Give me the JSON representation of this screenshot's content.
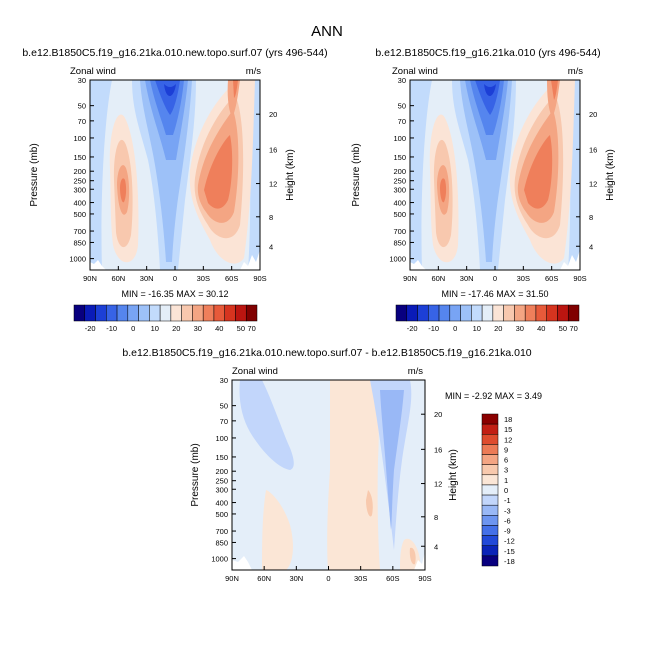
{
  "figure": {
    "title": "ANN"
  },
  "colors": {
    "mean_scale": [
      "#08007f",
      "#0a1bb8",
      "#1c3fd6",
      "#3763e6",
      "#5585ee",
      "#78a4f4",
      "#9dc1f8",
      "#c2dbfc",
      "#e4eef8",
      "#fbe4d6",
      "#f8c8ae",
      "#f4a583",
      "#ef7f5b",
      "#e75a3a",
      "#d6341f",
      "#bb1510",
      "#800000"
    ],
    "diff_scale": [
      "#08007f",
      "#0a24b8",
      "#2149d8",
      "#4470e8",
      "#6d95f0",
      "#99b8f6",
      "#c2d6fb",
      "#e4eef9",
      "#fbe6d6",
      "#f8c9ad",
      "#f4a583",
      "#ec7b56",
      "#de4c2e",
      "#c21f14",
      "#8a0000"
    ]
  },
  "chart_data": [
    {
      "type": "contour",
      "title": "b.e12.B1850C5.f19_g16.21ka.010.new.topo.surf.07 (yrs 496-544)",
      "left_label": "Zonal wind",
      "right_label": "m/s",
      "ylabel": "Pressure (mb)",
      "ylabel_right": "Height (km)",
      "x_ticks": [
        "90N",
        "60N",
        "30N",
        "0",
        "30S",
        "60S",
        "90S"
      ],
      "y_ticks": [
        "30",
        "50",
        "70",
        "100",
        "150",
        "200",
        "250",
        "300",
        "400",
        "500",
        "700",
        "850",
        "1000"
      ],
      "y_ticks_right": [
        "20",
        "16",
        "12",
        "8",
        "4"
      ],
      "min_max": "MIN = -16.35   MAX = 30.12",
      "min": -16.35,
      "max": 30.12,
      "xlim": [
        90,
        -90
      ],
      "ylim": [
        1000,
        30
      ],
      "cbar_labels": [
        "-20",
        "-10",
        "0",
        "10",
        "20",
        "30",
        "40",
        "50",
        "70"
      ]
    },
    {
      "type": "contour",
      "title": "b.e12.B1850C5.f19_g16.21ka.010 (yrs 496-544)",
      "left_label": "Zonal wind",
      "right_label": "m/s",
      "ylabel": "Pressure (mb)",
      "ylabel_right": "Height (km)",
      "x_ticks": [
        "90N",
        "60N",
        "30N",
        "0",
        "30S",
        "60S",
        "90S"
      ],
      "y_ticks": [
        "30",
        "50",
        "70",
        "100",
        "150",
        "200",
        "250",
        "300",
        "400",
        "500",
        "700",
        "850",
        "1000"
      ],
      "y_ticks_right": [
        "20",
        "16",
        "12",
        "8",
        "4"
      ],
      "min_max": "MIN = -17.46   MAX = 31.50",
      "min": -17.46,
      "max": 31.5,
      "xlim": [
        90,
        -90
      ],
      "ylim": [
        1000,
        30
      ],
      "cbar_labels": [
        "-20",
        "-10",
        "0",
        "10",
        "20",
        "30",
        "40",
        "50",
        "70"
      ]
    },
    {
      "type": "contour",
      "title": "b.e12.B1850C5.f19_g16.21ka.010.new.topo.surf.07 - b.e12.B1850C5.f19_g16.21ka.010",
      "left_label": "Zonal wind",
      "right_label": "m/s",
      "ylabel": "Pressure (mb)",
      "ylabel_right": "Height (km)",
      "x_ticks": [
        "90N",
        "60N",
        "30N",
        "0",
        "30S",
        "60S",
        "90S"
      ],
      "y_ticks": [
        "30",
        "50",
        "70",
        "100",
        "150",
        "200",
        "250",
        "300",
        "400",
        "500",
        "700",
        "850",
        "1000"
      ],
      "y_ticks_right": [
        "20",
        "16",
        "12",
        "8",
        "4"
      ],
      "min_max": "MIN =  -2.92   MAX =   3.49",
      "min": -2.92,
      "max": 3.49,
      "xlim": [
        90,
        -90
      ],
      "ylim": [
        1000,
        30
      ],
      "cbar_labels": [
        "18",
        "15",
        "12",
        "9",
        "6",
        "3",
        "1",
        "0",
        "-1",
        "-3",
        "-6",
        "-9",
        "-12",
        "-15",
        "-18"
      ]
    }
  ]
}
